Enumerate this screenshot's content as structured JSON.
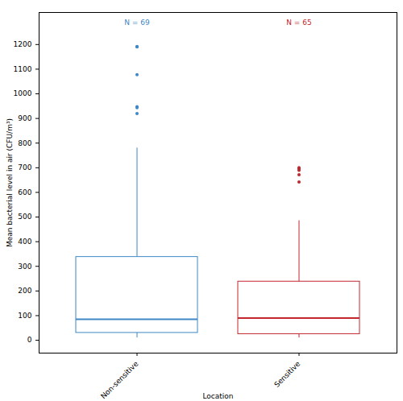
{
  "chart_data": {
    "type": "box",
    "x_label": "Location",
    "y_label": "Mean bacterial level in air (CFU/m³)",
    "categories": [
      "Non-sensitive",
      "Sensitive"
    ],
    "colors": [
      "#3f88c5",
      "#c1272d"
    ],
    "n_labels": [
      "N = 69",
      "N = 65"
    ],
    "whisker_low": [
      10,
      10
    ],
    "q1": [
      30,
      25
    ],
    "median": [
      85,
      90
    ],
    "q3": [
      338,
      238
    ],
    "whisker_high": [
      780,
      485
    ],
    "outliers": [
      [
        1192,
        1190,
        1078,
        948,
        944,
        920
      ],
      [
        700,
        695,
        690,
        672,
        642
      ]
    ],
    "ylim": [
      -52,
      1330
    ],
    "yticks": [
      0,
      100,
      200,
      300,
      400,
      500,
      600,
      700,
      800,
      900,
      1000,
      1100,
      1200
    ],
    "grid": false
  }
}
